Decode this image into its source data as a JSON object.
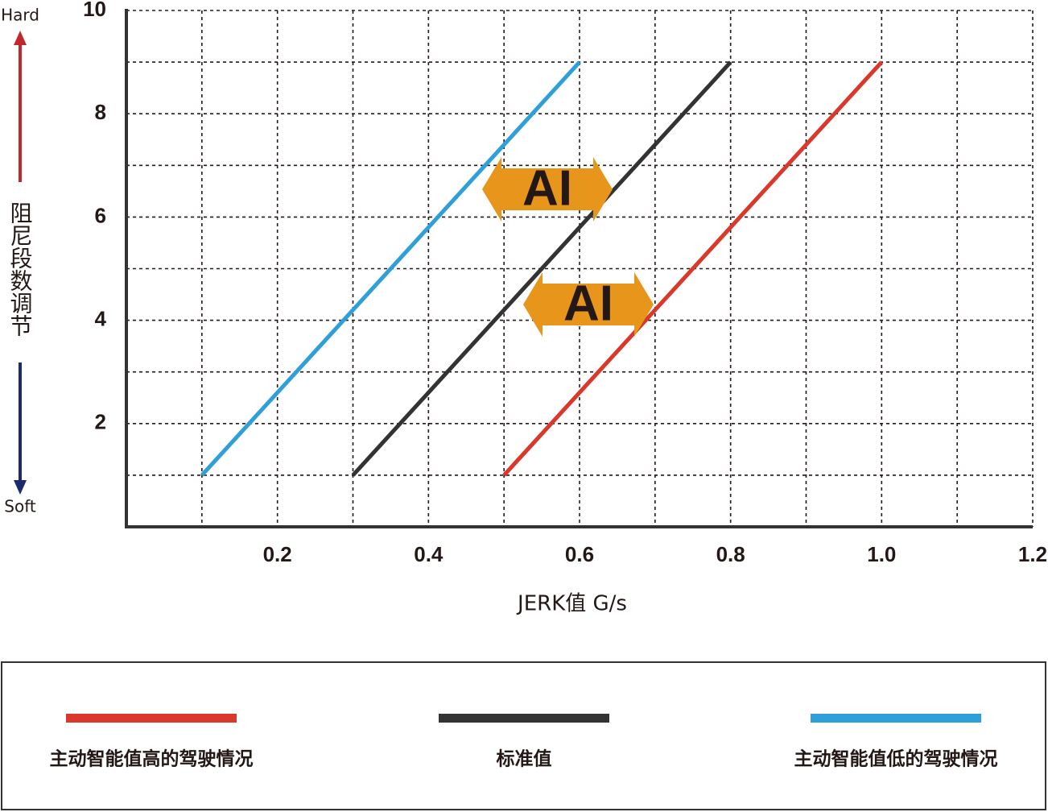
{
  "chart_data": {
    "type": "line",
    "y_label": "阻尼段数调节",
    "y_top_label": "Hard",
    "y_bottom_label": "Soft",
    "x_label": "JERK值 G/s",
    "xlim": [
      0,
      1.2
    ],
    "ylim": [
      0,
      10
    ],
    "xticks": [
      0.2,
      0.4,
      0.6,
      0.8,
      {
        "value": 1,
        "label": "1.0"
      },
      1.2
    ],
    "yticks": [
      2,
      4,
      6,
      8,
      10
    ],
    "xgrid": [
      0.1,
      0.2,
      0.3,
      0.4,
      0.5,
      0.6,
      0.7,
      0.8,
      0.9,
      1,
      1.1,
      1.2
    ],
    "ygrid": [
      1,
      2,
      3,
      4,
      5,
      6,
      7,
      8,
      9,
      10
    ],
    "grid": true,
    "legend": "bottom",
    "series": [
      {
        "name": "主动智能值高的驾驶情况",
        "color": "#d9382b",
        "x": [
          0.5,
          1.0
        ],
        "values": [
          1,
          9
        ]
      },
      {
        "name": "标准值",
        "color": "#333333",
        "x": [
          0.3,
          0.8
        ],
        "values": [
          1,
          9
        ]
      },
      {
        "name": "主动智能值低的驾驶情况",
        "color": "#2e9fd8",
        "x": [
          0.1,
          0.6
        ],
        "values": [
          1,
          9
        ]
      }
    ],
    "annotations": [
      "AI",
      "AI"
    ]
  }
}
